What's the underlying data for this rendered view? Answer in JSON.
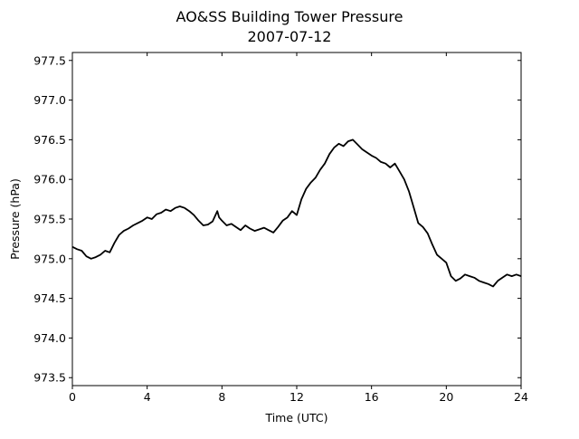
{
  "chart_data": {
    "type": "line",
    "title": "AO&SS Building Tower Pressure",
    "subtitle": "2007-07-12",
    "xlabel": "Time (UTC)",
    "ylabel": "Pressure (hPa)",
    "xlim": [
      0,
      24
    ],
    "ylim": [
      973.4,
      977.6
    ],
    "xticks": [
      0,
      4,
      8,
      12,
      16,
      20,
      24
    ],
    "xtick_labels": [
      "0",
      "4",
      "8",
      "12",
      "16",
      "20",
      "24"
    ],
    "yticks": [
      973.5,
      974.0,
      974.5,
      975.0,
      975.5,
      976.0,
      976.5,
      977.0,
      977.5
    ],
    "ytick_labels": [
      "973.5",
      "974.0",
      "974.5",
      "975.0",
      "975.5",
      "976.0",
      "976.5",
      "977.0",
      "977.5"
    ],
    "grid": false,
    "series": [
      {
        "color": "#000000",
        "x": [
          0,
          0.25,
          0.5,
          0.75,
          1.0,
          1.25,
          1.5,
          1.75,
          2.0,
          2.25,
          2.5,
          2.75,
          3.0,
          3.25,
          3.5,
          3.75,
          4.0,
          4.25,
          4.5,
          4.75,
          5.0,
          5.25,
          5.5,
          5.75,
          6.0,
          6.25,
          6.5,
          6.75,
          7.0,
          7.25,
          7.5,
          7.75,
          7.85,
          8.0,
          8.25,
          8.5,
          8.75,
          9.0,
          9.25,
          9.5,
          9.75,
          10.0,
          10.25,
          10.5,
          10.75,
          11.0,
          11.25,
          11.5,
          11.75,
          12.0,
          12.25,
          12.5,
          12.75,
          13.0,
          13.25,
          13.5,
          13.75,
          14.0,
          14.25,
          14.5,
          14.75,
          15.0,
          15.25,
          15.5,
          15.75,
          16.0,
          16.25,
          16.5,
          16.75,
          17.0,
          17.25,
          17.5,
          17.75,
          18.0,
          18.25,
          18.5,
          18.75,
          19.0,
          19.25,
          19.5,
          19.75,
          20.0,
          20.25,
          20.5,
          20.75,
          21.0,
          21.25,
          21.5,
          21.75,
          22.0,
          22.25,
          22.5,
          22.75,
          23.0,
          23.25,
          23.5,
          23.75,
          24.0
        ],
        "y": [
          975.15,
          975.12,
          975.1,
          975.03,
          975.0,
          975.02,
          975.05,
          975.1,
          975.08,
          975.2,
          975.3,
          975.35,
          975.38,
          975.42,
          975.45,
          975.48,
          975.52,
          975.5,
          975.56,
          975.58,
          975.62,
          975.6,
          975.64,
          975.66,
          975.64,
          975.6,
          975.55,
          975.48,
          975.42,
          975.43,
          975.47,
          975.6,
          975.52,
          975.48,
          975.42,
          975.44,
          975.4,
          975.36,
          975.42,
          975.38,
          975.35,
          975.37,
          975.39,
          975.36,
          975.33,
          975.4,
          975.48,
          975.52,
          975.6,
          975.55,
          975.75,
          975.88,
          975.96,
          976.02,
          976.12,
          976.2,
          976.32,
          976.4,
          976.45,
          976.42,
          976.48,
          976.5,
          976.44,
          976.38,
          976.34,
          976.3,
          976.27,
          976.22,
          976.2,
          976.15,
          976.2,
          976.1,
          976.0,
          975.85,
          975.65,
          975.45,
          975.4,
          975.32,
          975.18,
          975.05,
          975.0,
          974.95,
          974.78,
          974.72,
          974.75,
          974.8,
          974.78,
          974.76,
          974.72,
          974.7,
          974.68,
          974.65,
          974.72,
          974.76,
          974.8,
          974.78,
          974.8,
          974.78
        ]
      }
    ]
  }
}
